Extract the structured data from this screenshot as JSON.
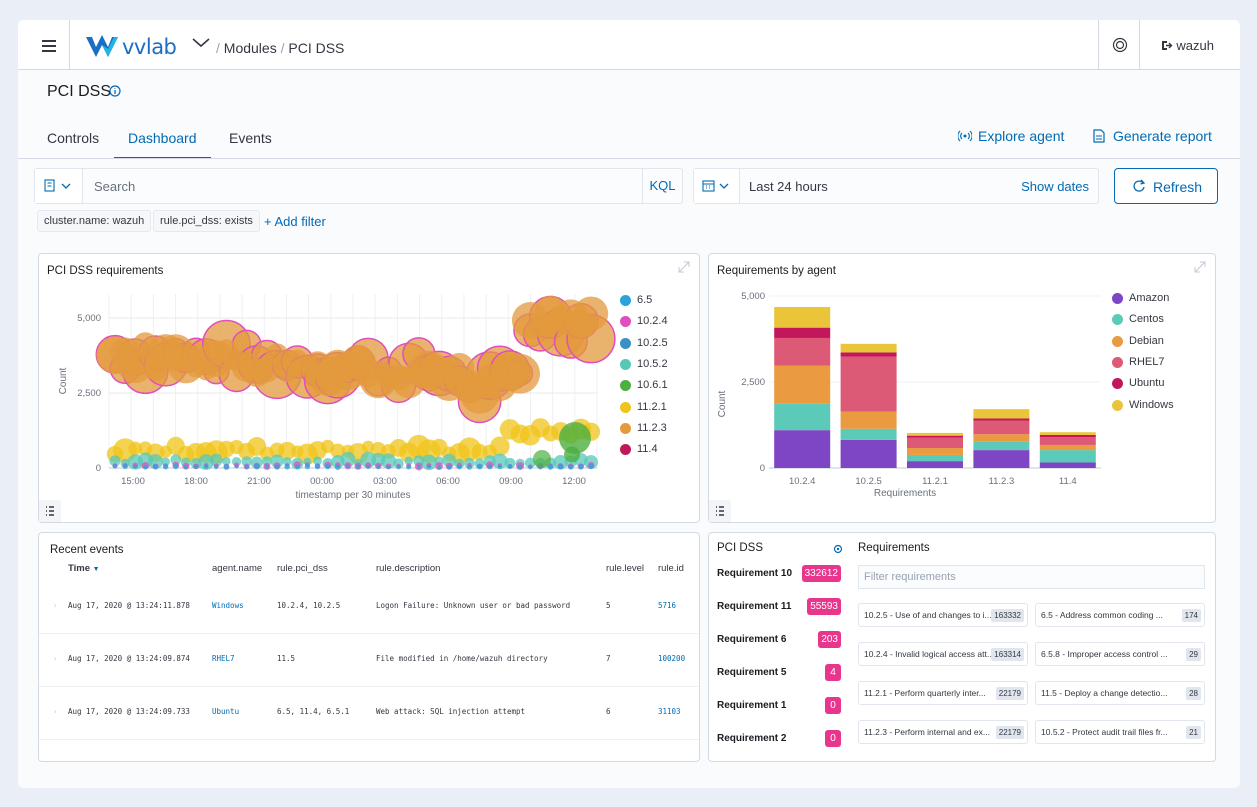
{
  "header": {
    "brand": "vvlab",
    "breadcrumb": [
      "Modules",
      "PCI DSS"
    ],
    "user": "wazuh"
  },
  "page": {
    "title": "PCI DSS",
    "tabs": [
      "Controls",
      "Dashboard",
      "Events"
    ],
    "active_tab": "Dashboard",
    "explore_agent": "Explore agent",
    "generate_report": "Generate report"
  },
  "search": {
    "placeholder": "Search",
    "language": "KQL",
    "date_range": "Last 24 hours",
    "show_dates": "Show dates",
    "refresh": "Refresh",
    "filters": [
      "cluster.name: wazuh",
      "rule.pci_dss: exists"
    ],
    "add_filter": "+ Add filter"
  },
  "colors": {
    "accent": "#006bb4",
    "pink": "#e7368b",
    "purple": "#7f3fbf",
    "teal": "#5ac8b5",
    "orange": "#e7973a",
    "red": "#dd5a76",
    "crimson": "#c2185b",
    "yellow": "#efc440"
  },
  "chart_data": [
    {
      "type": "scatter",
      "title": "PCI DSS requirements",
      "xlabel": "timestamp per 30 minutes",
      "ylabel": "Count",
      "x_ticks": [
        "15:00",
        "18:00",
        "21:00",
        "00:00",
        "03:00",
        "06:00",
        "09:00",
        "12:00"
      ],
      "y_ticks": [
        "0",
        "2,500",
        "5,000"
      ],
      "ylim": [
        0,
        5800
      ],
      "legend": [
        {
          "name": "6.5",
          "color": "#2aa3dc"
        },
        {
          "name": "10.2.4",
          "color": "#e04fbd"
        },
        {
          "name": "10.2.5",
          "color": "#3a8fc6"
        },
        {
          "name": "10.5.2",
          "color": "#56c8b8"
        },
        {
          "name": "10.6.1",
          "color": "#4caf40"
        },
        {
          "name": "11.2.1",
          "color": "#f0c419"
        },
        {
          "name": "11.2.3",
          "color": "#e39a3c"
        },
        {
          "name": "11.4",
          "color": "#c2185b"
        }
      ]
    },
    {
      "type": "bar",
      "title": "Requirements by agent",
      "xlabel": "Requirements",
      "ylabel": "Count",
      "categories": [
        "10.2.4",
        "10.2.5",
        "11.2.1",
        "11.2.3",
        "11.4"
      ],
      "y_ticks": [
        "0",
        "2,500",
        "5,000"
      ],
      "ylim": [
        0,
        5000
      ],
      "series": [
        {
          "name": "Amazon",
          "color": "#7e45c4",
          "values": [
            1100,
            820,
            200,
            520,
            160
          ]
        },
        {
          "name": "Centos",
          "color": "#5ccab8",
          "values": [
            780,
            320,
            180,
            260,
            360
          ]
        },
        {
          "name": "Debian",
          "color": "#ea9a3f",
          "values": [
            1100,
            500,
            200,
            200,
            150
          ]
        },
        {
          "name": "RHEL7",
          "color": "#dd5a76",
          "values": [
            800,
            1600,
            300,
            400,
            230
          ]
        },
        {
          "name": "Ubuntu",
          "color": "#c2185b",
          "values": [
            300,
            120,
            60,
            60,
            60
          ]
        },
        {
          "name": "Windows",
          "color": "#eac53a",
          "values": [
            600,
            250,
            80,
            270,
            80
          ]
        }
      ]
    }
  ],
  "recent_events": {
    "title": "Recent events",
    "columns": [
      "Time",
      "agent.name",
      "rule.pci_dss",
      "rule.description",
      "rule.level",
      "rule.id"
    ],
    "rows": [
      [
        "Aug 17, 2020 @ 13:24:11.878",
        "Windows",
        "10.2.4, 10.2.5",
        "Logon Failure: Unknown user or bad password",
        "5",
        "5716"
      ],
      [
        "Aug 17, 2020 @ 13:24:09.874",
        "RHEL7",
        "11.5",
        "File modified in /home/wazuh directory",
        "7",
        "100200"
      ],
      [
        "Aug 17, 2020 @ 13:24:09.733",
        "Ubuntu",
        "6.5, 11.4, 6.5.1",
        "Web attack: SQL injection attempt",
        "6",
        "31103"
      ]
    ]
  },
  "pci_panel": {
    "title": "PCI DSS",
    "requirements_title": "Requirements",
    "filter_placeholder": "Filter requirements",
    "list": [
      {
        "label": "Requirement 10",
        "count": "332612"
      },
      {
        "label": "Requirement 11",
        "count": "55593"
      },
      {
        "label": "Requirement 6",
        "count": "203"
      },
      {
        "label": "Requirement 5",
        "count": "4"
      },
      {
        "label": "Requirement 1",
        "count": "0"
      },
      {
        "label": "Requirement 2",
        "count": "0"
      }
    ],
    "cards": [
      {
        "text": "10.2.5 - Use of and changes to i...",
        "count": "163332"
      },
      {
        "text": "6.5 - Address common coding ...",
        "count": "174"
      },
      {
        "text": "10.2.4 - Invalid logical access att...",
        "count": "163314"
      },
      {
        "text": "6.5.8 - Improper access control ...",
        "count": "29"
      },
      {
        "text": "11.2.1 - Perform quarterly inter...",
        "count": "22179"
      },
      {
        "text": "11.5 - Deploy a change detectio...",
        "count": "28"
      },
      {
        "text": "11.2.3 - Perform internal and ex...",
        "count": "22179"
      },
      {
        "text": "10.5.2 - Protect audit trail files fr...",
        "count": "21"
      }
    ]
  }
}
